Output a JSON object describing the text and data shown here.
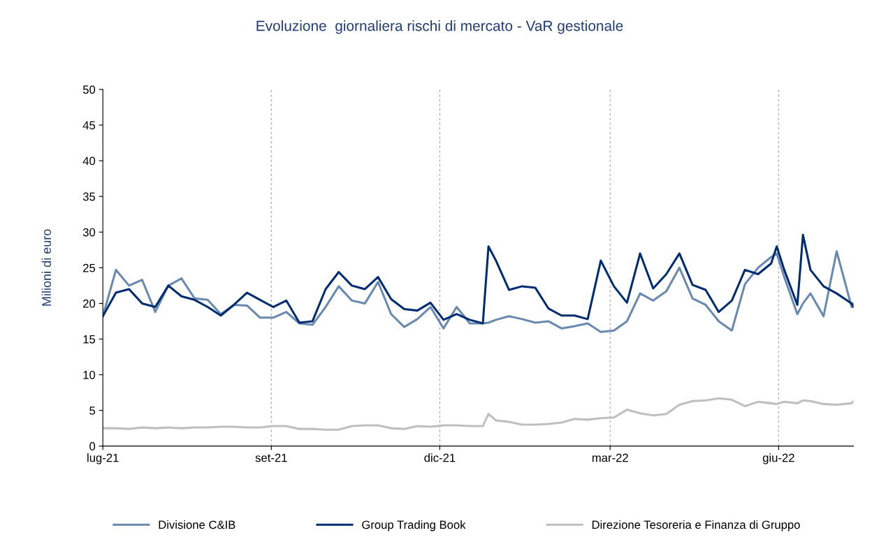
{
  "chart_data": {
    "type": "line",
    "title": "Evoluzione  giornaliera rischi di mercato - VaR gestionale",
    "ylabel": "Milioni di euro",
    "x": [
      "2021-07-01",
      "2021-07-08",
      "2021-07-15",
      "2021-07-22",
      "2021-07-29",
      "2021-08-05",
      "2021-08-12",
      "2021-08-19",
      "2021-08-26",
      "2021-09-02",
      "2021-09-09",
      "2021-09-16",
      "2021-09-23",
      "2021-09-30",
      "2021-10-07",
      "2021-10-14",
      "2021-10-21",
      "2021-10-28",
      "2021-11-04",
      "2021-11-11",
      "2021-11-18",
      "2021-11-25",
      "2021-12-02",
      "2021-12-09",
      "2021-12-16",
      "2021-12-23",
      "2021-12-30",
      "2022-01-06",
      "2022-01-13",
      "2022-01-20",
      "2022-01-23",
      "2022-01-27",
      "2022-02-03",
      "2022-02-10",
      "2022-02-17",
      "2022-02-24",
      "2022-03-03",
      "2022-03-10",
      "2022-03-17",
      "2022-03-24",
      "2022-03-31",
      "2022-04-07",
      "2022-04-14",
      "2022-04-21",
      "2022-04-28",
      "2022-05-05",
      "2022-05-12",
      "2022-05-19",
      "2022-05-26",
      "2022-06-02",
      "2022-06-09",
      "2022-06-16",
      "2022-06-23",
      "2022-06-26",
      "2022-06-30",
      "2022-07-07",
      "2022-07-10",
      "2022-07-14",
      "2022-07-21",
      "2022-07-28",
      "2022-08-05",
      "2022-08-06"
    ],
    "series": [
      {
        "name": "Divisione C&IB",
        "color": "#6a89b0",
        "values": [
          18.2,
          24.7,
          22.5,
          23.3,
          18.8,
          22.5,
          23.5,
          20.7,
          20.5,
          18.5,
          19.8,
          19.7,
          18,
          18,
          18.8,
          17.2,
          17,
          19.5,
          22.4,
          20.4,
          20,
          23,
          18.5,
          16.7,
          17.8,
          19.5,
          16.5,
          19.5,
          17.2,
          17.2,
          17.3,
          17.7,
          18.2,
          17.8,
          17.3,
          17.5,
          16.5,
          16.8,
          17.2,
          16,
          16.2,
          17.5,
          21.4,
          20.4,
          21.7,
          25,
          20.7,
          19.8,
          17.5,
          16.2,
          22.7,
          25,
          26.5,
          27,
          23.7,
          18.5,
          20,
          21.4,
          18.2,
          27.3,
          19.5,
          20
        ]
      },
      {
        "name": "Group Trading Book",
        "color": "#002d72",
        "values": [
          18.2,
          21.5,
          22,
          20,
          19.5,
          22.5,
          21,
          20.5,
          19.5,
          18.3,
          19.8,
          21.5,
          20.5,
          19.5,
          20.4,
          17.3,
          17.5,
          22,
          24.4,
          22.5,
          22,
          23.7,
          20.6,
          19.2,
          19,
          20.1,
          17.7,
          18.5,
          17.7,
          17.2,
          28,
          26,
          21.9,
          22.4,
          22.2,
          19.3,
          18.3,
          18.3,
          17.8,
          26,
          22.4,
          20.1,
          27,
          22.1,
          24.1,
          27,
          22.6,
          21.9,
          18.8,
          20.4,
          24.7,
          24.1,
          25.6,
          28,
          24.7,
          19.8,
          29.6,
          24.7,
          22.4,
          21.4,
          20,
          19.5
        ]
      },
      {
        "name": "Direzione Tesoreria e Finanza di Gruppo",
        "color": "#bfbfbf",
        "values": [
          2.5,
          2.5,
          2.4,
          2.6,
          2.5,
          2.6,
          2.5,
          2.6,
          2.6,
          2.7,
          2.7,
          2.6,
          2.6,
          2.8,
          2.8,
          2.4,
          2.4,
          2.3,
          2.3,
          2.8,
          2.9,
          2.9,
          2.5,
          2.4,
          2.8,
          2.7,
          2.9,
          2.9,
          2.8,
          2.8,
          4.5,
          3.6,
          3.4,
          3,
          3,
          3.1,
          3.3,
          3.8,
          3.7,
          3.9,
          4,
          5.1,
          4.6,
          4.3,
          4.5,
          5.8,
          6.3,
          6.4,
          6.7,
          6.5,
          5.6,
          6.2,
          6,
          5.9,
          6.2,
          6,
          6.4,
          6.3,
          5.9,
          5.8,
          6,
          6.3
        ]
      }
    ],
    "xlim": [
      "2021-07-01",
      "2022-08-06"
    ],
    "xticks": [
      {
        "value": "2021-07-01",
        "label": "lug-21"
      },
      {
        "value": "2021-09-29",
        "label": "set-21"
      },
      {
        "value": "2021-12-28",
        "label": "dic-21"
      },
      {
        "value": "2022-03-29",
        "label": "mar-22"
      },
      {
        "value": "2022-06-27",
        "label": "giu-22"
      }
    ],
    "ylim": [
      0,
      50
    ],
    "yticks": [
      0,
      5,
      10,
      15,
      20,
      25,
      30,
      35,
      40,
      45,
      50
    ],
    "grid": "x",
    "legend": "bottom",
    "marker": "none",
    "line_style": "solid"
  }
}
